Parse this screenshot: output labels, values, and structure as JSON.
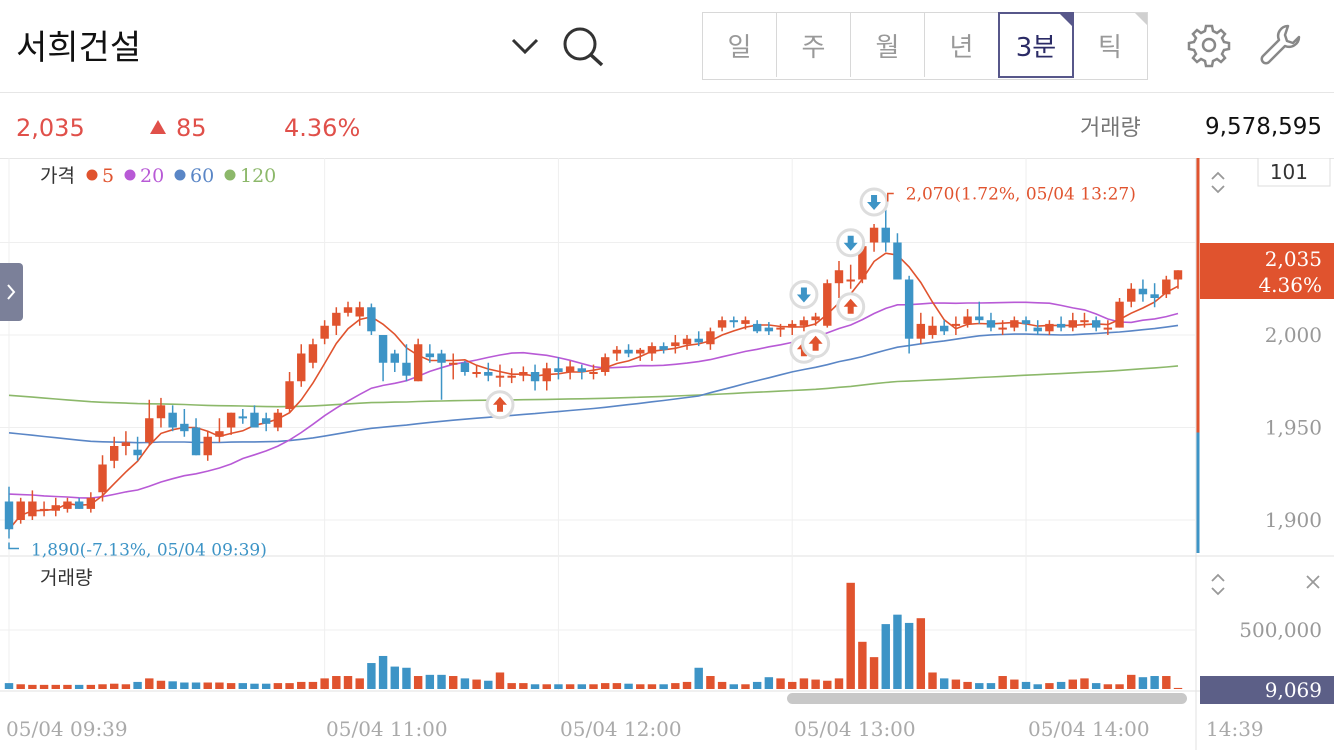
{
  "header": {
    "stock_name": "서희건설",
    "tabs": [
      "일",
      "주",
      "월",
      "년",
      "3분",
      "틱"
    ],
    "active_tab": "3분"
  },
  "quote": {
    "price": "2,035",
    "change": "85",
    "change_rate": "4.36%",
    "volume_label": "거래량",
    "volume": "9,578,595"
  },
  "colors": {
    "up": "#e0532e",
    "down": "#3d94c6",
    "ma5": "#e0532e",
    "ma20": "#b85ad6",
    "ma60": "#5a86c6",
    "ma120": "#8cb86a",
    "current_badge": "#e0532e",
    "volume_badge": "#5c5f87"
  },
  "chart_data": {
    "type": "candlestick",
    "legend": {
      "label": "가격",
      "items": [
        {
          "name": "5",
          "color": "#e0532e"
        },
        {
          "name": "20",
          "color": "#b85ad6"
        },
        {
          "name": "60",
          "color": "#5a86c6"
        },
        {
          "name": "120",
          "color": "#8cb86a"
        }
      ]
    },
    "ylim": [
      1880,
      2100
    ],
    "y_ticks": [
      "2,000",
      "1,950",
      "1,900"
    ],
    "top_label": "101",
    "current_price_label": "2,035",
    "current_rate_label": "4.36%",
    "x_labels": [
      "05/04 09:39",
      "05/04 11:00",
      "05/04 12:00",
      "05/04 13:00",
      "05/04 14:00",
      "14:39"
    ],
    "x_label_index": [
      0,
      27,
      47,
      67,
      87
    ],
    "max_annotation": "2,070(1.72%, 05/04 13:27)",
    "min_annotation": "1,890(-7.13%, 05/04 09:39)",
    "max_index": 75,
    "min_index": 0,
    "candles": [
      [
        1910,
        1918,
        1890,
        1895
      ],
      [
        1900,
        1912,
        1898,
        1910
      ],
      [
        1902,
        1916,
        1900,
        1910
      ],
      [
        1905,
        1910,
        1902,
        1906
      ],
      [
        1905,
        1912,
        1902,
        1908
      ],
      [
        1906,
        1912,
        1904,
        1910
      ],
      [
        1910,
        1912,
        1906,
        1906
      ],
      [
        1906,
        1915,
        1904,
        1912
      ],
      [
        1915,
        1935,
        1910,
        1930
      ],
      [
        1932,
        1945,
        1928,
        1940
      ],
      [
        1940,
        1948,
        1935,
        1942
      ],
      [
        1938,
        1945,
        1932,
        1935
      ],
      [
        1942,
        1965,
        1940,
        1955
      ],
      [
        1955,
        1966,
        1950,
        1962
      ],
      [
        1958,
        1962,
        1948,
        1950
      ],
      [
        1952,
        1960,
        1945,
        1948
      ],
      [
        1950,
        1955,
        1935,
        1935
      ],
      [
        1935,
        1948,
        1932,
        1945
      ],
      [
        1945,
        1955,
        1942,
        1948
      ],
      [
        1950,
        1958,
        1946,
        1958
      ],
      [
        1956,
        1960,
        1952,
        1955
      ],
      [
        1958,
        1962,
        1950,
        1950
      ],
      [
        1955,
        1958,
        1948,
        1952
      ],
      [
        1950,
        1960,
        1948,
        1958
      ],
      [
        1960,
        1980,
        1958,
        1975
      ],
      [
        1975,
        1995,
        1972,
        1990
      ],
      [
        1985,
        1998,
        1982,
        1995
      ],
      [
        1998,
        2008,
        1995,
        2005
      ],
      [
        2005,
        2015,
        2000,
        2012
      ],
      [
        2012,
        2018,
        2010,
        2015
      ],
      [
        2010,
        2018,
        2005,
        2015
      ],
      [
        2015,
        2017,
        2000,
        2002
      ],
      [
        2000,
        2000,
        1975,
        1985
      ],
      [
        1990,
        1992,
        1980,
        1985
      ],
      [
        1985,
        1995,
        1975,
        1978
      ],
      [
        1975,
        1998,
        1975,
        1995
      ],
      [
        1990,
        1995,
        1985,
        1988
      ],
      [
        1990,
        1992,
        1965,
        1985
      ],
      [
        1985,
        1990,
        1976,
        1985
      ],
      [
        1985,
        1986,
        1978,
        1980
      ],
      [
        1980,
        1984,
        1977,
        1980
      ],
      [
        1980,
        1985,
        1975,
        1978
      ],
      [
        1978,
        1984,
        1972,
        1978
      ],
      [
        1978,
        1982,
        1974,
        1978
      ],
      [
        1978,
        1983,
        1975,
        1980
      ],
      [
        1980,
        1984,
        1970,
        1975
      ],
      [
        1975,
        1985,
        1970,
        1982
      ],
      [
        1982,
        1988,
        1976,
        1980
      ],
      [
        1980,
        1986,
        1976,
        1983
      ],
      [
        1982,
        1984,
        1976,
        1980
      ],
      [
        1980,
        1984,
        1976,
        1980
      ],
      [
        1980,
        1990,
        1978,
        1988
      ],
      [
        1990,
        1994,
        1986,
        1992
      ],
      [
        1992,
        1995,
        1988,
        1990
      ],
      [
        1990,
        1993,
        1986,
        1992
      ],
      [
        1990,
        1996,
        1986,
        1994
      ],
      [
        1994,
        1996,
        1990,
        1992
      ],
      [
        1994,
        2000,
        1990,
        1996
      ],
      [
        1995,
        2000,
        1992,
        1998
      ],
      [
        1998,
        2002,
        1994,
        1996
      ],
      [
        1995,
        2004,
        1992,
        2002
      ],
      [
        2004,
        2010,
        2002,
        2008
      ],
      [
        2008,
        2010,
        2004,
        2007
      ],
      [
        2006,
        2010,
        2003,
        2008
      ],
      [
        2006,
        2008,
        2001,
        2002
      ],
      [
        2004,
        2007,
        2000,
        2002
      ],
      [
        2003,
        2006,
        1999,
        2004
      ],
      [
        2004,
        2008,
        2000,
        2006
      ],
      [
        2005,
        2010,
        2002,
        2008
      ],
      [
        2008,
        2012,
        2005,
        2010
      ],
      [
        2005,
        2030,
        2004,
        2028
      ],
      [
        2028,
        2040,
        2020,
        2035
      ],
      [
        2030,
        2038,
        2025,
        2030
      ],
      [
        2030,
        2052,
        2028,
        2048
      ],
      [
        2050,
        2060,
        2045,
        2058
      ],
      [
        2058,
        2070,
        2045,
        2050
      ],
      [
        2050,
        2055,
        2030,
        2030
      ],
      [
        2030,
        2032,
        1990,
        1998
      ],
      [
        1998,
        2012,
        1995,
        2006
      ],
      [
        2000,
        2010,
        1998,
        2005
      ],
      [
        2005,
        2008,
        2000,
        2002
      ],
      [
        2005,
        2010,
        2000,
        2006
      ],
      [
        2006,
        2014,
        2004,
        2010
      ],
      [
        2010,
        2018,
        2006,
        2008
      ],
      [
        2008,
        2012,
        2002,
        2004
      ],
      [
        2004,
        2008,
        2000,
        2004
      ],
      [
        2004,
        2010,
        2002,
        2008
      ],
      [
        2008,
        2010,
        2002,
        2006
      ],
      [
        2004,
        2008,
        2000,
        2002
      ],
      [
        2002,
        2008,
        2000,
        2006
      ],
      [
        2006,
        2010,
        2002,
        2004
      ],
      [
        2004,
        2012,
        2002,
        2008
      ],
      [
        2008,
        2012,
        2004,
        2008
      ],
      [
        2008,
        2010,
        2002,
        2004
      ],
      [
        2004,
        2008,
        2000,
        2004
      ],
      [
        2004,
        2020,
        2004,
        2018
      ],
      [
        2018,
        2028,
        2015,
        2025
      ],
      [
        2025,
        2030,
        2018,
        2022
      ],
      [
        2022,
        2028,
        2015,
        2020
      ],
      [
        2022,
        2032,
        2020,
        2030
      ],
      [
        2030,
        2035,
        2025,
        2035
      ]
    ],
    "volume": {
      "label": "거래량",
      "ylim": [
        0,
        1000000
      ],
      "y_ticks": [
        "500,000"
      ],
      "last_label": "9,069",
      "values": [
        50000,
        40000,
        35000,
        35000,
        35000,
        35000,
        35000,
        35000,
        40000,
        45000,
        40000,
        60000,
        90000,
        70000,
        65000,
        55000,
        55000,
        55000,
        55000,
        50000,
        50000,
        45000,
        45000,
        50000,
        50000,
        60000,
        60000,
        90000,
        110000,
        110000,
        90000,
        220000,
        280000,
        190000,
        180000,
        110000,
        120000,
        120000,
        110000,
        90000,
        80000,
        70000,
        140000,
        50000,
        50000,
        40000,
        40000,
        40000,
        40000,
        40000,
        40000,
        50000,
        50000,
        45000,
        40000,
        40000,
        40000,
        50000,
        60000,
        180000,
        110000,
        60000,
        40000,
        40000,
        60000,
        100000,
        90000,
        60000,
        90000,
        80000,
        70000,
        90000,
        900000,
        400000,
        270000,
        550000,
        630000,
        560000,
        600000,
        140000,
        90000,
        80000,
        60000,
        50000,
        50000,
        110000,
        80000,
        60000,
        40000,
        50000,
        60000,
        80000,
        90000,
        50000,
        40000,
        40000,
        120000,
        100000,
        110000,
        110000,
        9069
      ]
    },
    "signals": [
      {
        "type": "buy",
        "index": 42
      },
      {
        "type": "sell",
        "index": 68
      },
      {
        "type": "buy",
        "index": 68
      },
      {
        "type": "buy",
        "index": 69
      },
      {
        "type": "buy",
        "index": 72
      },
      {
        "type": "sell",
        "index": 72
      },
      {
        "type": "sell",
        "index": 74
      }
    ]
  }
}
